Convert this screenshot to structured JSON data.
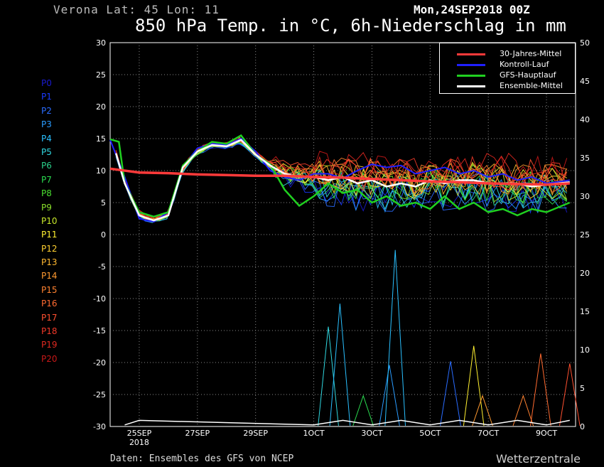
{
  "header": {
    "station": "Verona   Lat: 45 Lon: 11",
    "run": "Mon,24SEP2018 00Z",
    "title": "850 hPa Temp. in °C, 6h-Niederschlag in mm"
  },
  "footer": {
    "source": "Daten: Ensembles des GFS von NCEP",
    "brand": "Wetterzentrale"
  },
  "members": [
    {
      "label": "P0",
      "color": "#1a1ad0"
    },
    {
      "label": "P1",
      "color": "#1a3aff"
    },
    {
      "label": "P2",
      "color": "#2a6cff"
    },
    {
      "label": "P3",
      "color": "#2a9cff"
    },
    {
      "label": "P4",
      "color": "#2ac0ff"
    },
    {
      "label": "P5",
      "color": "#30d8e0"
    },
    {
      "label": "P6",
      "color": "#2ad08a"
    },
    {
      "label": "P7",
      "color": "#2adc50"
    },
    {
      "label": "P8",
      "color": "#4ae030"
    },
    {
      "label": "P9",
      "color": "#8ae02a"
    },
    {
      "label": "P10",
      "color": "#c8e82a"
    },
    {
      "label": "P11",
      "color": "#fff030"
    },
    {
      "label": "P12",
      "color": "#ffd030"
    },
    {
      "label": "P13",
      "color": "#ffb830"
    },
    {
      "label": "P14",
      "color": "#ff9a30"
    },
    {
      "label": "P15",
      "color": "#ff8230"
    },
    {
      "label": "P16",
      "color": "#ff6a30"
    },
    {
      "label": "P17",
      "color": "#ff5030"
    },
    {
      "label": "P18",
      "color": "#f03828"
    },
    {
      "label": "P19",
      "color": "#e02820"
    },
    {
      "label": "P20",
      "color": "#c81818"
    }
  ],
  "legend": [
    {
      "label": "30-Jahres-Mittel",
      "color": "#ff3a3a"
    },
    {
      "label": "Kontroll-Lauf",
      "color": "#2020ff"
    },
    {
      "label": "GFS-Hauptlauf",
      "color": "#20d020"
    },
    {
      "label": "Ensemble-Mittel",
      "color": "#ffffff"
    }
  ],
  "chart_data": {
    "type": "line",
    "title": "850 hPa Temp. in °C, 6h-Niederschlag in mm",
    "y_left": {
      "ticks": [
        30,
        25,
        20,
        15,
        10,
        5,
        0,
        -5,
        -10,
        -15,
        -20,
        -25,
        -30
      ],
      "range": [
        -30,
        30
      ]
    },
    "y_right": {
      "ticks": [
        50,
        45,
        40,
        35,
        30,
        25,
        20,
        15,
        10,
        5,
        0
      ],
      "range": [
        0,
        50
      ]
    },
    "x": {
      "range_days": [
        0,
        16
      ],
      "ticks": [
        {
          "label": "25SEP",
          "day": 1.0,
          "sub": "2018"
        },
        {
          "label": "27SEP",
          "day": 3.0
        },
        {
          "label": "29SEP",
          "day": 5.0
        },
        {
          "label": "1OCT",
          "day": 7.0
        },
        {
          "label": "3OCT",
          "day": 9.0
        },
        {
          "label": "5OCT",
          "day": 11.0
        },
        {
          "label": "7OCT",
          "day": 13.0
        },
        {
          "label": "9OCT",
          "day": 15.0
        }
      ]
    },
    "grid": true,
    "legend_position": "top-right",
    "climate_mean": [
      [
        0,
        10.3
      ],
      [
        1,
        9.7
      ],
      [
        2,
        9.6
      ],
      [
        3,
        9.4
      ],
      [
        4,
        9.3
      ],
      [
        5,
        9.2
      ],
      [
        6,
        9.2
      ],
      [
        7,
        9.0
      ],
      [
        8,
        8.9
      ],
      [
        9,
        8.7
      ],
      [
        10,
        8.5
      ],
      [
        11,
        8.3
      ],
      [
        12,
        8.2
      ],
      [
        13,
        8.0
      ],
      [
        14,
        7.9
      ],
      [
        15,
        7.8
      ],
      [
        15.8,
        8.0
      ]
    ],
    "control_run": [
      [
        0,
        14.8
      ],
      [
        0.5,
        9.0
      ],
      [
        1,
        2.5
      ],
      [
        1.5,
        2.0
      ],
      [
        2,
        3.5
      ],
      [
        2.5,
        10.5
      ],
      [
        3,
        13.5
      ],
      [
        3.5,
        14.2
      ],
      [
        4,
        14.0
      ],
      [
        4.5,
        15.0
      ],
      [
        5,
        13.0
      ],
      [
        5.5,
        10.0
      ],
      [
        6,
        9.0
      ],
      [
        6.5,
        8.5
      ],
      [
        7,
        9.5
      ],
      [
        7.5,
        9.5
      ],
      [
        8,
        8.8
      ],
      [
        8.5,
        10.0
      ],
      [
        9,
        11.0
      ],
      [
        9.5,
        10.5
      ],
      [
        10,
        10.8
      ],
      [
        10.5,
        9.5
      ],
      [
        11,
        10.0
      ],
      [
        11.5,
        10.5
      ],
      [
        12,
        9.5
      ],
      [
        12.5,
        10.0
      ],
      [
        13,
        9.0
      ],
      [
        13.5,
        9.5
      ],
      [
        14,
        8.5
      ],
      [
        14.5,
        9.0
      ],
      [
        15,
        8.0
      ],
      [
        15.8,
        8.5
      ]
    ],
    "main_run": [
      [
        0,
        14.9
      ],
      [
        0.3,
        14.5
      ],
      [
        0.5,
        8.0
      ],
      [
        1,
        3.5
      ],
      [
        1.5,
        2.8
      ],
      [
        2,
        3.5
      ],
      [
        2.5,
        10.8
      ],
      [
        3,
        13.0
      ],
      [
        3.5,
        14.5
      ],
      [
        4,
        14.2
      ],
      [
        4.5,
        15.5
      ],
      [
        5,
        12.5
      ],
      [
        5.5,
        11.0
      ],
      [
        6,
        7.0
      ],
      [
        6.5,
        4.5
      ],
      [
        7,
        6.0
      ],
      [
        7.5,
        8.0
      ],
      [
        8,
        6.5
      ],
      [
        8.5,
        7.0
      ],
      [
        9,
        5.0
      ],
      [
        9.5,
        6.0
      ],
      [
        10,
        4.5
      ],
      [
        10.5,
        5.0
      ],
      [
        11,
        4.0
      ],
      [
        11.5,
        6.0
      ],
      [
        12,
        4.0
      ],
      [
        12.5,
        5.0
      ],
      [
        13,
        3.5
      ],
      [
        13.5,
        4.0
      ],
      [
        14,
        3.0
      ],
      [
        14.5,
        4.0
      ],
      [
        15,
        3.5
      ],
      [
        15.8,
        5.0
      ]
    ],
    "ensemble_mean": [
      [
        0.2,
        12.7
      ],
      [
        0.5,
        8.0
      ],
      [
        1,
        3.0
      ],
      [
        1.5,
        2.2
      ],
      [
        2,
        3.0
      ],
      [
        2.5,
        10.5
      ],
      [
        3,
        13.0
      ],
      [
        3.5,
        14.0
      ],
      [
        4,
        13.8
      ],
      [
        4.5,
        14.8
      ],
      [
        5,
        12.5
      ],
      [
        5.5,
        10.8
      ],
      [
        6,
        9.5
      ],
      [
        6.5,
        9.0
      ],
      [
        7,
        9.0
      ],
      [
        7.5,
        8.5
      ],
      [
        8,
        9.0
      ],
      [
        8.5,
        8.0
      ],
      [
        9,
        8.5
      ],
      [
        9.5,
        7.5
      ],
      [
        10,
        8.0
      ],
      [
        10.5,
        7.5
      ],
      [
        11,
        8.5
      ],
      [
        11.5,
        8.0
      ],
      [
        12,
        8.5
      ],
      [
        12.5,
        8.5
      ],
      [
        13,
        8.0
      ],
      [
        13.5,
        8.0
      ],
      [
        14,
        8.0
      ],
      [
        14.5,
        7.5
      ],
      [
        15,
        7.8
      ],
      [
        15.8,
        8.2
      ]
    ],
    "spread": {
      "upper": [
        [
          6,
          10.5
        ],
        [
          7,
          12.5
        ],
        [
          8,
          14.0
        ],
        [
          9,
          13.5
        ],
        [
          10,
          14.0
        ],
        [
          11,
          13.5
        ],
        [
          12,
          14.5
        ],
        [
          13,
          13.5
        ],
        [
          14,
          14.0
        ],
        [
          15,
          13.5
        ],
        [
          15.8,
          13.0
        ]
      ],
      "lower": [
        [
          6,
          4.5
        ],
        [
          7,
          3.0
        ],
        [
          8,
          2.5
        ],
        [
          9,
          3.5
        ],
        [
          10,
          2.0
        ],
        [
          11,
          2.5
        ],
        [
          12,
          1.5
        ],
        [
          13,
          2.0
        ],
        [
          14,
          1.0
        ],
        [
          15,
          0.5
        ],
        [
          15.8,
          -0.5
        ]
      ]
    },
    "precip_peaks": [
      {
        "day": 7.5,
        "mm": 13,
        "color": "#30d8e0"
      },
      {
        "day": 7.9,
        "mm": 16,
        "color": "#2ac0ff"
      },
      {
        "day": 8.7,
        "mm": 4,
        "color": "#2adc50"
      },
      {
        "day": 9.6,
        "mm": 8,
        "color": "#2a9cff"
      },
      {
        "day": 9.8,
        "mm": 23,
        "color": "#2ac0ff"
      },
      {
        "day": 11.7,
        "mm": 8.5,
        "color": "#2a6cff"
      },
      {
        "day": 12.5,
        "mm": 10.5,
        "color": "#fff030"
      },
      {
        "day": 12.8,
        "mm": 4,
        "color": "#ff9a30"
      },
      {
        "day": 14.2,
        "mm": 4,
        "color": "#ff8230"
      },
      {
        "day": 14.8,
        "mm": 9.5,
        "color": "#ff6a30"
      },
      {
        "day": 15.8,
        "mm": 8.2,
        "color": "#ff5030"
      }
    ]
  }
}
